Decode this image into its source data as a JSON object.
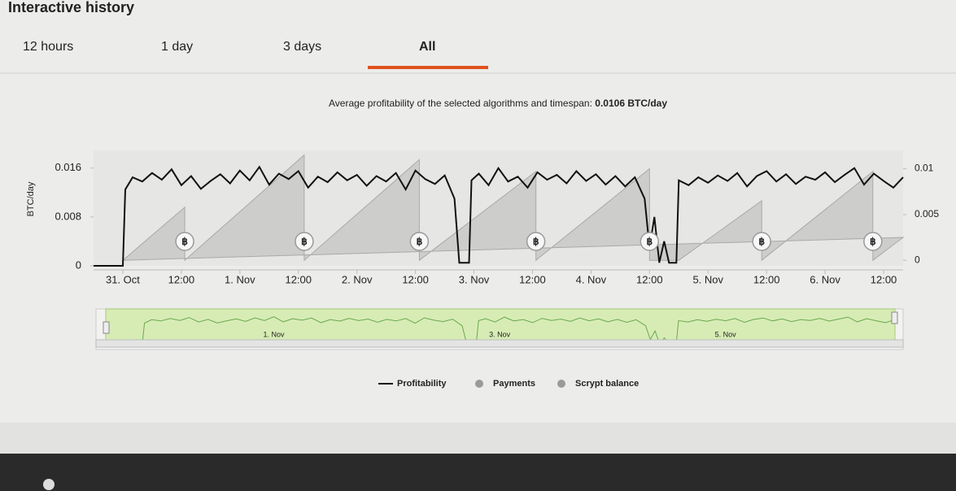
{
  "header": {
    "title": "Interactive history"
  },
  "tabs": [
    "12 hours",
    "1 day",
    "3 days",
    "All"
  ],
  "selected_tab": 3,
  "summary_label": "Average profitability of the selected algorithms and timespan:",
  "summary_value": "0.0106 BTC/day",
  "chart_data": {
    "type": "line",
    "ylabel": "BTC/day",
    "xlim": [
      -6,
      160
    ],
    "ylim": [
      0,
      0.0189
    ],
    "y2lim": [
      -0.0006,
      0.012
    ],
    "yticks": [
      0,
      0.008,
      0.016
    ],
    "y2ticks": [
      0,
      0.005,
      0.01
    ],
    "xticks": [
      {
        "value": 0,
        "label": "31. Oct"
      },
      {
        "value": 12,
        "label": "12:00"
      },
      {
        "value": 24,
        "label": "1. Nov"
      },
      {
        "value": 36,
        "label": "12:00"
      },
      {
        "value": 48,
        "label": "2. Nov"
      },
      {
        "value": 60,
        "label": "12:00"
      },
      {
        "value": 72,
        "label": "3. Nov"
      },
      {
        "value": 84,
        "label": "12:00"
      },
      {
        "value": 96,
        "label": "4. Nov"
      },
      {
        "value": 108,
        "label": "12:00"
      },
      {
        "value": 120,
        "label": "5. Nov"
      },
      {
        "value": 132,
        "label": "12:00"
      },
      {
        "value": 144,
        "label": "6. Nov"
      },
      {
        "value": 156,
        "label": "12:00"
      }
    ],
    "series": [
      {
        "name": "Profitability",
        "color": "#111111",
        "x": [
          -6,
          -2,
          0,
          0.5,
          2,
          4,
          6,
          8,
          10,
          12,
          14,
          16,
          18,
          20,
          22,
          24,
          26,
          28,
          30,
          32,
          34,
          36,
          38,
          40,
          42,
          44,
          46,
          48,
          50,
          52,
          54,
          56,
          58,
          60,
          62,
          64,
          66,
          68,
          69,
          71,
          71.5,
          73,
          75,
          77,
          79,
          81,
          83,
          85,
          87,
          89,
          91,
          93,
          95,
          97,
          99,
          101,
          103,
          105,
          107,
          108,
          109,
          110,
          111,
          112,
          113.5,
          114,
          116,
          118,
          120,
          122,
          124,
          126,
          128,
          130,
          132,
          134,
          136,
          138,
          140,
          142,
          144,
          146,
          148,
          150,
          152,
          154,
          156,
          158,
          160
        ],
        "values": [
          0,
          0,
          0,
          0.0125,
          0.0145,
          0.0138,
          0.0152,
          0.0141,
          0.0158,
          0.0132,
          0.0147,
          0.0126,
          0.0139,
          0.015,
          0.0135,
          0.0156,
          0.014,
          0.0162,
          0.0133,
          0.0151,
          0.0142,
          0.0155,
          0.0128,
          0.0146,
          0.0137,
          0.0153,
          0.014,
          0.0149,
          0.0131,
          0.0147,
          0.0138,
          0.0152,
          0.0125,
          0.0156,
          0.0142,
          0.0134,
          0.0148,
          0.011,
          0.0005,
          0.0005,
          0.014,
          0.0151,
          0.0132,
          0.016,
          0.0138,
          0.0146,
          0.0128,
          0.0153,
          0.0141,
          0.0149,
          0.0135,
          0.0155,
          0.0139,
          0.015,
          0.0133,
          0.0147,
          0.013,
          0.0145,
          0.011,
          0.003,
          0.008,
          0.0005,
          0.004,
          0.0005,
          0.0005,
          0.014,
          0.0132,
          0.0145,
          0.0136,
          0.0148,
          0.0139,
          0.0152,
          0.013,
          0.0147,
          0.0155,
          0.0138,
          0.015,
          0.0134,
          0.0146,
          0.0141,
          0.0153,
          0.0137,
          0.0149,
          0.016,
          0.0133,
          0.0151,
          0.0139,
          0.0128,
          0.0145
        ]
      },
      {
        "name": "Payments",
        "color": "#9a9a9a",
        "symbol": "฿",
        "x": [
          12.7,
          37.2,
          60.8,
          84.7,
          108,
          131,
          153.8
        ]
      },
      {
        "name": "Scrypt balance",
        "color": "#9a9a9a",
        "axis": "y2",
        "x": [
          0,
          12.7,
          12.7,
          37.2,
          37.2,
          60.8,
          60.8,
          84.7,
          84.7,
          108,
          108,
          114,
          131,
          131,
          153.8,
          153.8,
          160
        ],
        "values": [
          0,
          0.0058,
          0,
          0.0115,
          0,
          0.011,
          0,
          0.0097,
          0,
          0.01,
          0,
          0,
          0.0065,
          0,
          0.0097,
          0,
          0.0025
        ]
      }
    ],
    "navigator_ticks": [
      {
        "value": 24,
        "label": "1. Nov"
      },
      {
        "value": 72,
        "label": "3. Nov"
      },
      {
        "value": 120,
        "label": "5. Nov"
      }
    ]
  }
}
